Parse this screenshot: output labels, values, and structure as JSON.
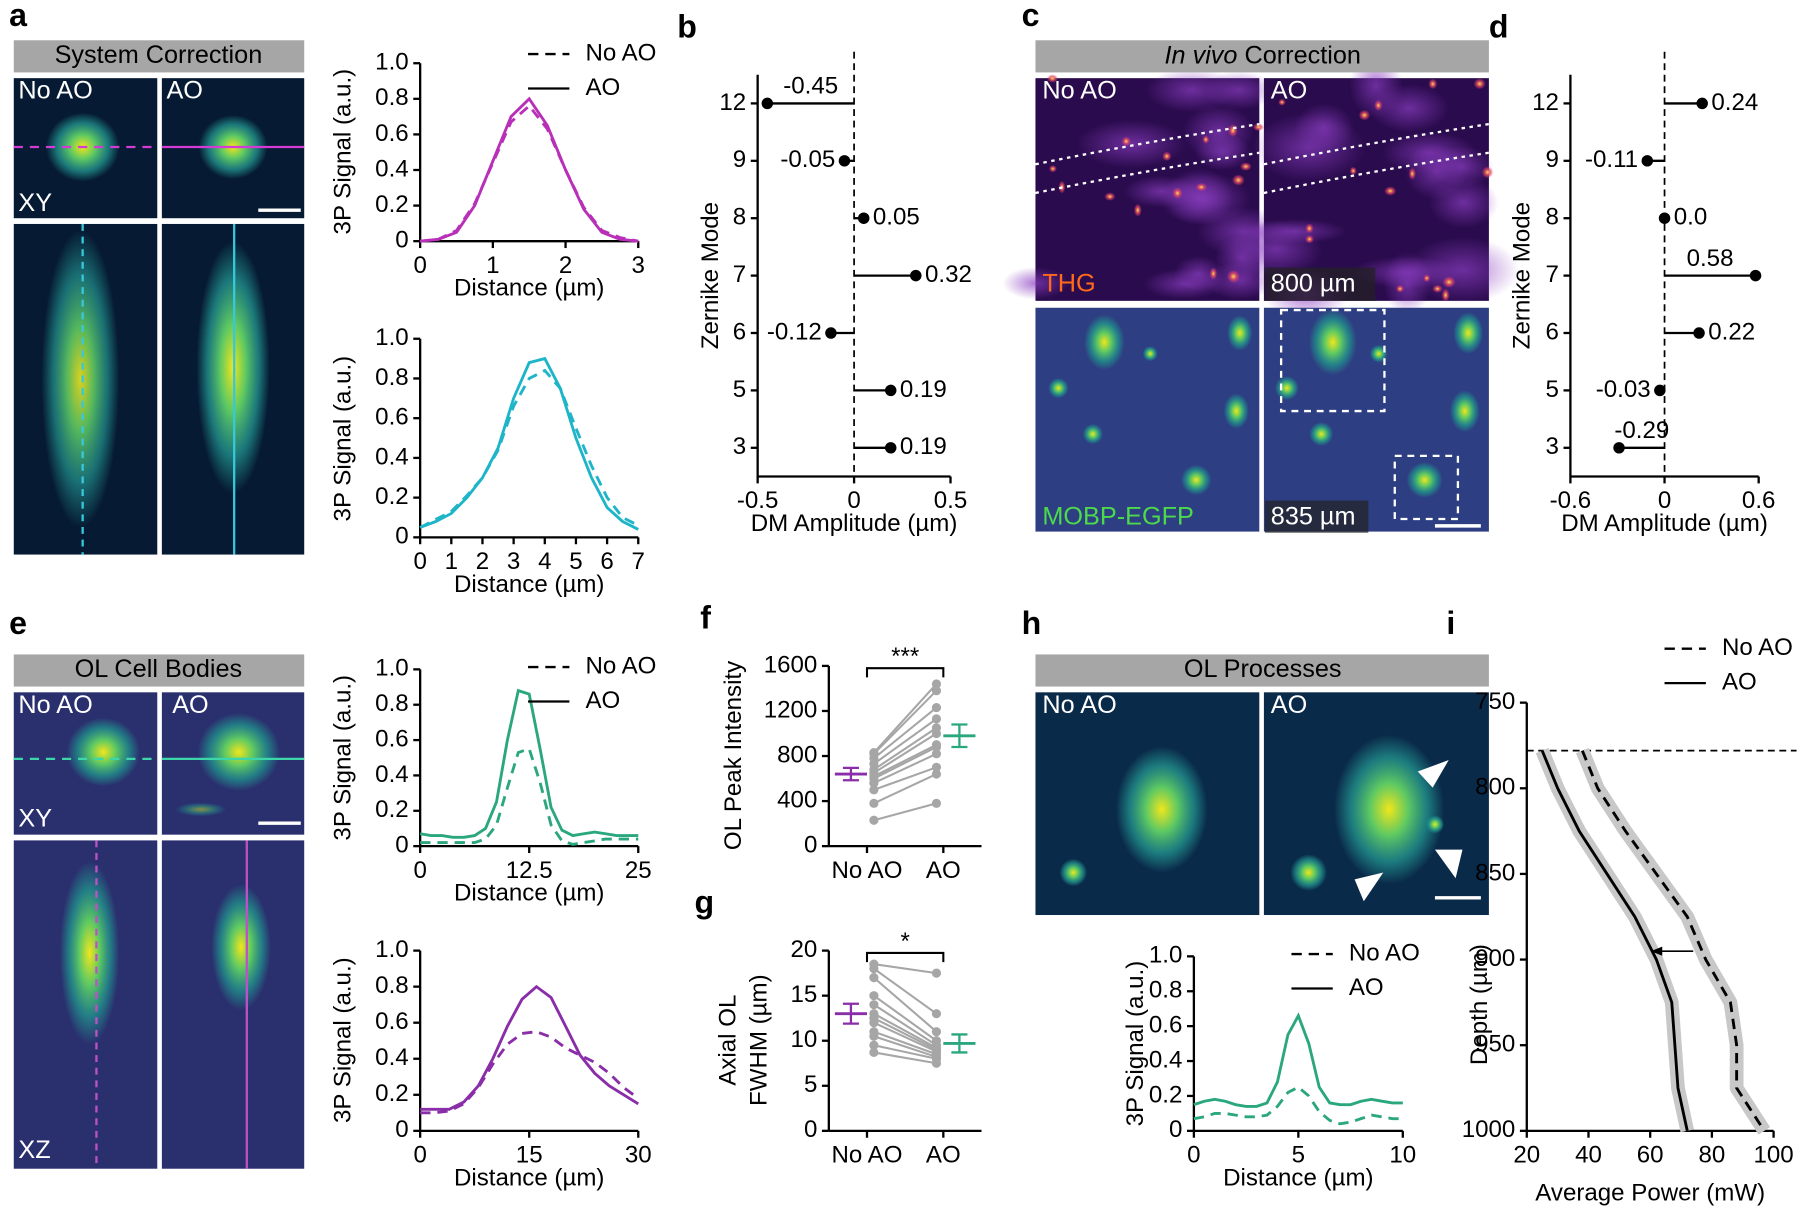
{
  "figure_panels": [
    {
      "letter": "a",
      "title": "System Correction",
      "labels": [
        "No AO",
        "AO",
        "XY"
      ]
    },
    {
      "letter": "c",
      "title_italic": "In vivo",
      "title": "Correction",
      "labels": [
        "No AO",
        "AO",
        "THG",
        "800 µm",
        "MOBP-EGFP",
        "835 µm"
      ]
    },
    {
      "letter": "e",
      "title": "OL Cell Bodies",
      "labels": [
        "No AO",
        "AO",
        "XY",
        "XZ"
      ]
    },
    {
      "letter": "h",
      "title": "OL Processes",
      "labels": [
        "No AO",
        "AO"
      ]
    }
  ],
  "chart_data": [
    {
      "type": "line",
      "x": [
        0,
        0.25,
        0.5,
        0.75,
        1,
        1.25,
        1.5,
        1.75,
        2,
        2.25,
        2.5,
        2.75,
        3
      ],
      "series": [
        {
          "name": "No AO",
          "color": "#b82fb8",
          "dash": true,
          "values": [
            0,
            0.01,
            0.06,
            0.21,
            0.44,
            0.67,
            0.76,
            0.63,
            0.4,
            0.19,
            0.06,
            0.02,
            0
          ]
        },
        {
          "name": "AO",
          "color": "#b82fb8",
          "dash": false,
          "values": [
            0,
            0.01,
            0.05,
            0.2,
            0.45,
            0.7,
            0.8,
            0.65,
            0.4,
            0.18,
            0.05,
            0.01,
            0
          ]
        }
      ],
      "xlim": [
        0,
        3
      ],
      "ylim": [
        0,
        1
      ],
      "xticks": [
        0,
        1,
        2,
        3
      ],
      "yticks": [
        0,
        0.2,
        0.4,
        0.6,
        0.8,
        {
          "value": 1,
          "label": "1.0"
        }
      ],
      "x_label": "Distance (µm)",
      "y_label": "3P Signal (a.u.)",
      "legend": "top-right"
    },
    {
      "type": "line",
      "x": [
        0,
        0.5,
        1,
        1.5,
        2,
        2.5,
        3,
        3.5,
        4,
        4.5,
        5,
        5.5,
        6,
        6.5,
        7
      ],
      "series": [
        {
          "name": "No AO",
          "color": "#1fb5c9",
          "dash": true,
          "values": [
            0.05,
            0.09,
            0.13,
            0.21,
            0.3,
            0.44,
            0.66,
            0.8,
            0.84,
            0.75,
            0.55,
            0.36,
            0.2,
            0.1,
            0.06
          ]
        },
        {
          "name": "AO",
          "color": "#1fb5c9",
          "dash": false,
          "values": [
            0.05,
            0.08,
            0.12,
            0.2,
            0.3,
            0.45,
            0.7,
            0.88,
            0.9,
            0.75,
            0.5,
            0.3,
            0.15,
            0.08,
            0.04
          ]
        }
      ],
      "xlim": [
        0,
        7
      ],
      "ylim": [
        0,
        1
      ],
      "xticks": [
        0,
        1,
        2,
        3,
        4,
        5,
        6,
        7
      ],
      "yticks": [
        0,
        0.2,
        0.4,
        0.6,
        0.8,
        {
          "value": 1,
          "label": "1.0"
        }
      ],
      "x_label": "Distance (µm)",
      "y_label": "3P Signal (a.u.)"
    },
    {
      "type": "lollipop",
      "panel": "b",
      "categories": [
        "12",
        "9",
        "8",
        "7",
        "6",
        "5",
        "3"
      ],
      "values": [
        -0.45,
        -0.05,
        0.05,
        0.32,
        -0.12,
        0.19,
        0.19
      ],
      "xlim": [
        -0.5,
        0.5
      ],
      "xticks": [
        -0.5,
        0,
        0.5
      ],
      "x_label": "DM Amplitude (µm)",
      "y_label": "Zernike Mode"
    },
    {
      "type": "lollipop",
      "panel": "d",
      "categories": [
        "12",
        "9",
        "8",
        "7",
        "6",
        "5",
        "3"
      ],
      "values": [
        0.24,
        -0.11,
        0,
        0.58,
        0.22,
        -0.03,
        -0.29
      ],
      "value_labels": [
        "0.24",
        "-0.11",
        "0.0",
        "0.58",
        "0.22",
        "-0.03",
        "-0.29"
      ],
      "xlim": [
        -0.6,
        0.6
      ],
      "xticks": [
        -0.6,
        0,
        0.6
      ],
      "x_label": "DM Amplitude (µm)",
      "y_label": "Zernike Mode"
    },
    {
      "type": "line",
      "x": [
        0,
        1.25,
        2.5,
        3.75,
        5,
        6.25,
        7.5,
        8.75,
        10,
        11.25,
        12.5,
        13.75,
        15,
        16.25,
        17.5,
        18.75,
        20,
        21.25,
        22.5,
        23.75,
        25
      ],
      "series": [
        {
          "name": "No AO",
          "color": "#2ba77f",
          "dash": true,
          "values": [
            0.02,
            0.02,
            0.02,
            0.02,
            0.02,
            0.02,
            0.04,
            0.12,
            0.33,
            0.53,
            0.55,
            0.36,
            0.12,
            0.03,
            0.01,
            0.02,
            0.03,
            0.04,
            0.04,
            0.04,
            0.04
          ]
        },
        {
          "name": "AO",
          "color": "#2ba77f",
          "dash": false,
          "values": [
            0.07,
            0.06,
            0.06,
            0.05,
            0.05,
            0.06,
            0.1,
            0.25,
            0.6,
            0.88,
            0.86,
            0.55,
            0.22,
            0.09,
            0.06,
            0.07,
            0.08,
            0.07,
            0.06,
            0.06,
            0.06
          ]
        }
      ],
      "xlim": [
        0,
        25
      ],
      "ylim": [
        0,
        1
      ],
      "xticks": [
        0,
        12.5,
        25
      ],
      "yticks": [
        0,
        0.2,
        0.4,
        0.6,
        0.8,
        {
          "value": 1,
          "label": "1.0"
        }
      ],
      "x_label": "Distance (µm)",
      "y_label": "3P Signal (a.u.)",
      "legend": "top-right"
    },
    {
      "type": "line",
      "x": [
        0,
        2,
        4,
        6,
        8,
        10,
        12,
        14,
        16,
        18,
        20,
        22,
        24,
        26,
        28,
        30
      ],
      "series": [
        {
          "name": "No AO",
          "color": "#8a2da8",
          "dash": true,
          "values": [
            0.1,
            0.1,
            0.11,
            0.15,
            0.24,
            0.37,
            0.48,
            0.54,
            0.55,
            0.52,
            0.46,
            0.42,
            0.38,
            0.32,
            0.24,
            0.18
          ]
        },
        {
          "name": "AO",
          "color": "#8a2da8",
          "dash": false,
          "values": [
            0.12,
            0.12,
            0.12,
            0.16,
            0.25,
            0.4,
            0.58,
            0.73,
            0.8,
            0.74,
            0.58,
            0.42,
            0.32,
            0.25,
            0.2,
            0.15
          ]
        }
      ],
      "xlim": [
        0,
        30
      ],
      "ylim": [
        0,
        1
      ],
      "xticks": [
        0,
        15,
        30
      ],
      "yticks": [
        0,
        0.2,
        0.4,
        0.6,
        0.8,
        {
          "value": 1,
          "label": "1.0"
        }
      ],
      "x_label": "Distance (µm)",
      "y_label": "3P Signal (a.u.)"
    },
    {
      "type": "paired",
      "panel": "f",
      "categories": [
        "No AO",
        "AO"
      ],
      "values": [
        [
          230,
          380,
          500,
          560,
          600,
          620,
          650,
          680,
          730,
          780,
          820,
          830
        ],
        [
          380,
          640,
          700,
          820,
          880,
          900,
          1000,
          1050,
          1130,
          1230,
          1380,
          1440
        ]
      ],
      "means": [
        640,
        980
      ],
      "errors": [
        55,
        100
      ],
      "mean_colors": [
        "#8a2da8",
        "#2ba77f"
      ],
      "point_color": "#a6a6a6",
      "significance": "***",
      "ylim": [
        0,
        1600
      ],
      "yticks": [
        0,
        400,
        800,
        1200,
        1600
      ],
      "y_label": [
        "OL Peak Intensity"
      ]
    },
    {
      "type": "paired",
      "panel": "g",
      "categories": [
        "No AO",
        "AO"
      ],
      "values": [
        [
          8.7,
          9.5,
          10.5,
          11,
          12,
          12.5,
          13,
          14,
          15,
          17,
          18,
          18.5
        ],
        [
          7.5,
          8,
          8.2,
          8.5,
          8.8,
          9,
          9.2,
          9.5,
          10,
          11,
          13,
          17.5
        ]
      ],
      "means": [
        13,
        9.7
      ],
      "errors": [
        1.1,
        1
      ],
      "mean_colors": [
        "#8a2da8",
        "#2ba77f"
      ],
      "point_color": "#a6a6a6",
      "significance": "*",
      "ylim": [
        0,
        20
      ],
      "yticks": [
        0,
        5,
        10,
        15,
        20
      ],
      "y_label": [
        "Axial OL",
        "FWHM (µm)"
      ]
    },
    {
      "type": "line",
      "x": [
        0,
        0.5,
        1,
        1.5,
        2,
        2.5,
        3,
        3.5,
        4,
        4.5,
        5,
        5.5,
        6,
        6.5,
        7,
        7.5,
        8,
        8.5,
        9,
        9.5,
        10
      ],
      "series": [
        {
          "name": "No AO",
          "color": "#2ba77f",
          "dash": true,
          "values": [
            0.07,
            0.08,
            0.1,
            0.1,
            0.09,
            0.08,
            0.08,
            0.09,
            0.14,
            0.22,
            0.25,
            0.2,
            0.11,
            0.06,
            0.04,
            0.05,
            0.07,
            0.09,
            0.08,
            0.07,
            0.07
          ]
        },
        {
          "name": "AO",
          "color": "#2ba77f",
          "dash": false,
          "values": [
            0.15,
            0.17,
            0.18,
            0.17,
            0.15,
            0.14,
            0.14,
            0.16,
            0.28,
            0.55,
            0.66,
            0.5,
            0.25,
            0.16,
            0.15,
            0.15,
            0.17,
            0.18,
            0.17,
            0.16,
            0.16
          ]
        }
      ],
      "xlim": [
        0,
        10
      ],
      "ylim": [
        0,
        1
      ],
      "xticks": [
        0,
        5,
        10
      ],
      "yticks": [
        0,
        0.2,
        0.4,
        0.6,
        0.8,
        {
          "value": 1,
          "label": "1.0"
        }
      ],
      "x_label": "Distance (µm)",
      "y_label": "3P Signal (a.u.)",
      "legend": "top-right"
    },
    {
      "type": "profile",
      "panel": "i",
      "y": [
        778,
        800,
        825,
        850,
        875,
        900,
        925,
        950,
        975,
        1000
      ],
      "series": [
        {
          "name": "No AO",
          "color": "#000000",
          "dash": true,
          "values": [
            38,
            43,
            52,
            62,
            72,
            78,
            86,
            88,
            88,
            97
          ]
        },
        {
          "name": "AO",
          "color": "#000000",
          "dash": false,
          "values": [
            25,
            30,
            37,
            46,
            55,
            62,
            67,
            68,
            69,
            72
          ]
        }
      ],
      "xlim": [
        20,
        100
      ],
      "ylim": [
        750,
        1000
      ],
      "y_inverted": true,
      "xticks": [
        20,
        40,
        60,
        80,
        100
      ],
      "yticks": [
        750,
        800,
        850,
        900,
        950,
        1000
      ],
      "hline": 778,
      "x_label": "Average Power (mW)",
      "y_label": "Depth (µm)",
      "legend": "top-right"
    }
  ]
}
